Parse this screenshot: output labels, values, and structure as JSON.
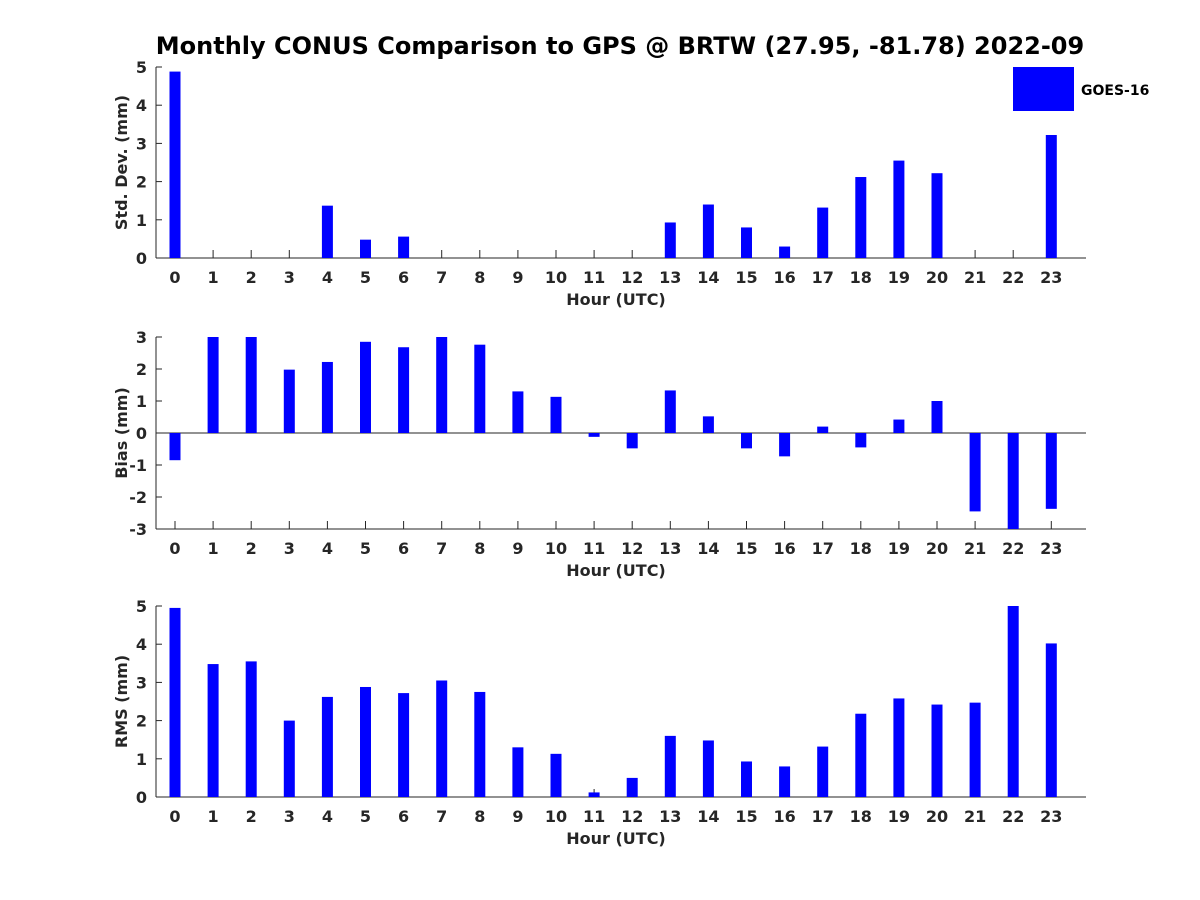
{
  "figure": {
    "title": "Monthly CONUS Comparison to GPS @ BRTW (27.95, -81.78) 2022-09"
  },
  "legend": {
    "label": "GOES-16",
    "color": "#0000ff",
    "placement": "top-right"
  },
  "chart_data": [
    {
      "type": "bar",
      "xlabel": "Hour (UTC)",
      "ylabel": "Std. Dev. (mm)",
      "ylim": [
        0,
        5
      ],
      "yticks": [
        0,
        1,
        2,
        3,
        4,
        5
      ],
      "categories": [
        0,
        1,
        2,
        3,
        4,
        5,
        6,
        7,
        8,
        9,
        10,
        11,
        12,
        13,
        14,
        15,
        16,
        17,
        18,
        19,
        20,
        21,
        22,
        23
      ],
      "series": [
        {
          "name": "GOES-16",
          "color": "#0000ff",
          "values": [
            4.88,
            0,
            0,
            0,
            1.37,
            0.48,
            0.56,
            0,
            0,
            0,
            0,
            0,
            0,
            0.93,
            1.4,
            0.8,
            0.3,
            1.32,
            2.12,
            2.55,
            2.22,
            0,
            0,
            3.22
          ]
        }
      ]
    },
    {
      "type": "bar",
      "xlabel": "Hour (UTC)",
      "ylabel": "Bias (mm)",
      "ylim": [
        -3,
        3
      ],
      "yticks": [
        -3,
        -2,
        -1,
        0,
        1,
        2,
        3
      ],
      "categories": [
        0,
        1,
        2,
        3,
        4,
        5,
        6,
        7,
        8,
        9,
        10,
        11,
        12,
        13,
        14,
        15,
        16,
        17,
        18,
        19,
        20,
        21,
        22,
        23
      ],
      "series": [
        {
          "name": "GOES-16",
          "color": "#0000ff",
          "values": [
            -0.85,
            3.0,
            3.0,
            1.98,
            2.22,
            2.85,
            2.68,
            3.0,
            2.76,
            1.3,
            1.13,
            -0.12,
            -0.48,
            1.33,
            0.52,
            -0.48,
            -0.73,
            0.2,
            -0.45,
            0.42,
            1.0,
            -2.45,
            -3.0,
            -2.37
          ]
        }
      ]
    },
    {
      "type": "bar",
      "xlabel": "Hour (UTC)",
      "ylabel": "RMS (mm)",
      "ylim": [
        0,
        5
      ],
      "yticks": [
        0,
        1,
        2,
        3,
        4,
        5
      ],
      "categories": [
        0,
        1,
        2,
        3,
        4,
        5,
        6,
        7,
        8,
        9,
        10,
        11,
        12,
        13,
        14,
        15,
        16,
        17,
        18,
        19,
        20,
        21,
        22,
        23
      ],
      "series": [
        {
          "name": "GOES-16",
          "color": "#0000ff",
          "values": [
            4.95,
            3.48,
            3.55,
            2.0,
            2.62,
            2.88,
            2.72,
            3.05,
            2.75,
            1.3,
            1.13,
            0.12,
            0.5,
            1.6,
            1.48,
            0.93,
            0.8,
            1.32,
            2.18,
            2.58,
            2.42,
            2.47,
            5.0,
            4.02
          ]
        }
      ]
    }
  ]
}
